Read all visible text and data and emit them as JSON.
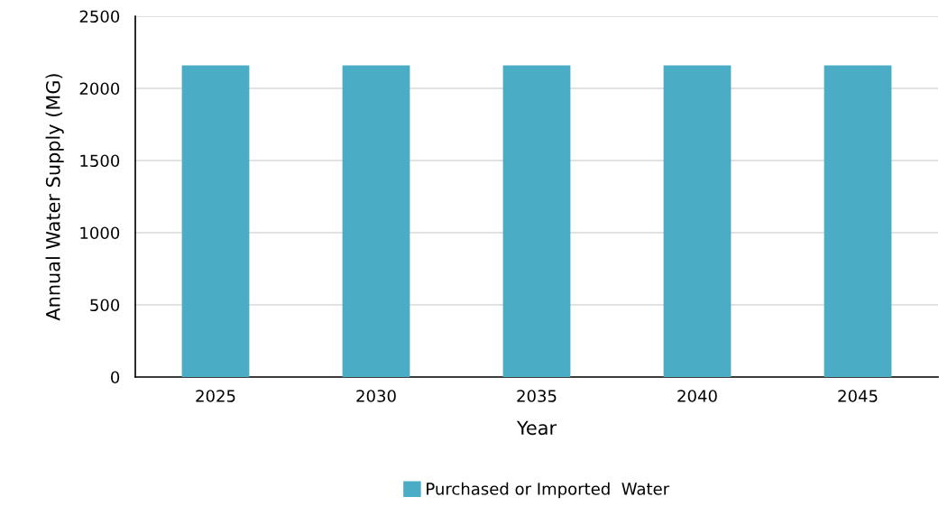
{
  "chart_data": {
    "type": "bar",
    "xlabel": "Year",
    "ylabel": "Annual Water Supply (MG)",
    "categories": [
      "2025",
      "2030",
      "2035",
      "2040",
      "2045"
    ],
    "series": [
      {
        "name": "Purchased or Imported  Water",
        "color": "#4bacc6",
        "values": [
          2160,
          2160,
          2160,
          2160,
          2160
        ]
      }
    ],
    "ylim": [
      0,
      2500
    ],
    "yticks": [
      0,
      500,
      1000,
      1500,
      2000,
      2500
    ],
    "grid": "y",
    "legend": "bottom"
  }
}
